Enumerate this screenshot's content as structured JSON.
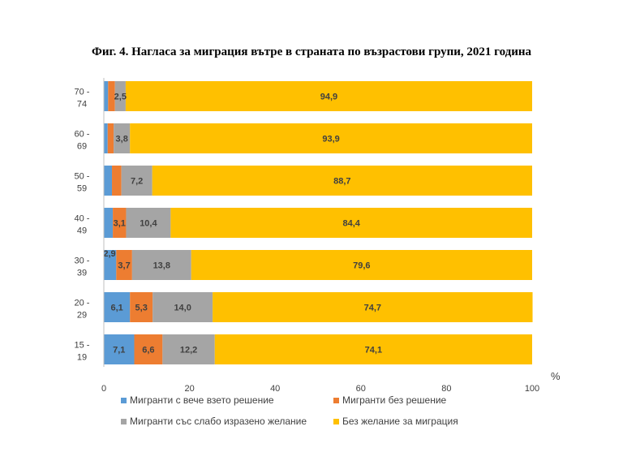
{
  "chart_data": {
    "type": "bar",
    "orientation": "horizontal",
    "stacked": true,
    "title": "Фиг. 4. Нагласа за миграция вътре в страната по възрастови групи, 2021 година",
    "x_unit": "%",
    "xlim": [
      0,
      100
    ],
    "x_ticks": [
      "0",
      "20",
      "40",
      "60",
      "80",
      "100"
    ],
    "categories": [
      {
        "line1": "70 -",
        "line2": "74"
      },
      {
        "line1": "60 -",
        "line2": "69"
      },
      {
        "line1": "50 -",
        "line2": "59"
      },
      {
        "line1": "40 -",
        "line2": "49"
      },
      {
        "line1": "30 -",
        "line2": "39"
      },
      {
        "line1": "20 -",
        "line2": "29"
      },
      {
        "line1": "15 -",
        "line2": "19"
      }
    ],
    "series": [
      {
        "name": "Мигранти с вече взето решение",
        "color": "#5B9BD5",
        "values": [
          1.0,
          0.9,
          1.9,
          2.1,
          2.9,
          6.1,
          7.1
        ],
        "labels": [
          "",
          "",
          "",
          "",
          "2,9",
          "6,1",
          "7,1"
        ]
      },
      {
        "name": "Мигранти без решение",
        "color": "#ED7D31",
        "values": [
          1.6,
          1.4,
          2.2,
          3.1,
          3.7,
          5.3,
          6.6
        ],
        "labels": [
          "",
          "",
          "",
          "3,1",
          "3,7",
          "5,3",
          "6,6"
        ]
      },
      {
        "name": "Мигранти със слабо изразено желание",
        "color": "#A5A5A5",
        "values": [
          2.5,
          3.8,
          7.2,
          10.4,
          13.8,
          14.0,
          12.2
        ],
        "labels": [
          "2,5",
          "3,8",
          "7,2",
          "10,4",
          "13,8",
          "14,0",
          "12,2"
        ]
      },
      {
        "name": "Без желание за миграция",
        "color": "#FFC000",
        "values": [
          94.9,
          93.9,
          88.7,
          84.4,
          79.6,
          74.7,
          74.1
        ],
        "labels": [
          "94,9",
          "93,9",
          "88,7",
          "84,4",
          "79,6",
          "74,7",
          "74,1"
        ]
      }
    ],
    "legend": [
      "Мигранти с вече взето решение",
      "Мигранти без решение",
      "Мигранти със слабо изразено желание",
      "Без желание за миграция"
    ],
    "legend_position": "bottom"
  }
}
